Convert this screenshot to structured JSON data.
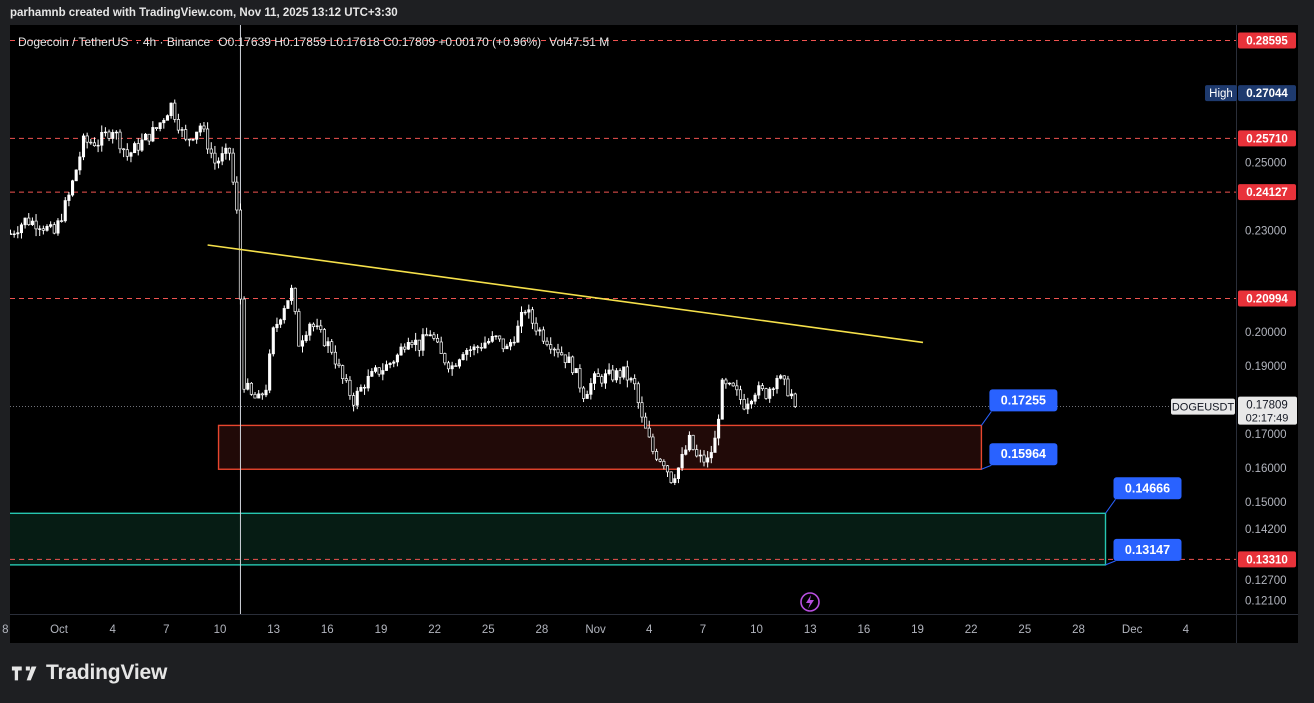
{
  "caption": "parhamnb created with TradingView.com, Nov 11, 2025 13:12 UTC+3:30",
  "brand": {
    "name": "TradingView"
  },
  "chart_data": {
    "type": "candlestick",
    "header": {
      "symbol": "Dogecoin / TetherUS",
      "interval": "4h",
      "exchange": "Binance",
      "ohlc": "O0.17639  H0.17859  L0.17618  C0.17809  +0.00170 (+0.96%)",
      "volume": "Vol47.51 M"
    },
    "colors": {
      "background": "#000000",
      "candle": "#ffffff",
      "trendline": "#f5e04a",
      "level_line": "#ef5350",
      "zone_red_border": "#e8462e",
      "zone_red_fill": "#210a08",
      "zone_green_border": "#26c6b0",
      "zone_green_fill": "#061c14",
      "blue_label": "#2962ff",
      "red_label": "#e8323a",
      "high_label": "#1e3a6e"
    },
    "y_axis": {
      "min": 0.117,
      "max": 0.2905,
      "ticks": [
        "0.25000",
        "0.23000",
        "0.20000",
        "0.19000",
        "0.17000",
        "0.16000",
        "0.15000",
        "0.14200",
        "0.12700",
        "0.12100"
      ]
    },
    "x_axis": {
      "ticks": [
        {
          "label": "8",
          "i": -1.4
        },
        {
          "label": "Oct",
          "i": 13.3
        },
        {
          "label": "4",
          "i": 28
        },
        {
          "label": "7",
          "i": 42.7
        },
        {
          "label": "10",
          "i": 57.4
        },
        {
          "label": "13",
          "i": 72.1
        },
        {
          "label": "16",
          "i": 86.8
        },
        {
          "label": "19",
          "i": 101.5
        },
        {
          "label": "22",
          "i": 116.2
        },
        {
          "label": "25",
          "i": 130.9
        },
        {
          "label": "28",
          "i": 145.6
        },
        {
          "label": "Nov",
          "i": 160.3
        },
        {
          "label": "4",
          "i": 175
        },
        {
          "label": "7",
          "i": 189.7
        },
        {
          "label": "10",
          "i": 204.4
        },
        {
          "label": "13",
          "i": 219.1
        },
        {
          "label": "16",
          "i": 233.8
        },
        {
          "label": "19",
          "i": 248.5
        },
        {
          "label": "22",
          "i": 263.2
        },
        {
          "label": "25",
          "i": 277.9
        },
        {
          "label": "28",
          "i": 292.6
        },
        {
          "label": "Dec",
          "i": 307.3
        },
        {
          "label": "4",
          "i": 322
        }
      ]
    },
    "levels": [
      {
        "label": "0.28595",
        "value": 0.28595
      },
      {
        "label": "0.25710",
        "value": 0.2571
      },
      {
        "label": "0.24127",
        "value": 0.24127
      },
      {
        "label": "0.20994",
        "value": 0.20994
      },
      {
        "label": "0.13310",
        "value": 0.1331
      }
    ],
    "high": {
      "tag": "High",
      "label": "0.27044",
      "value": 0.27044
    },
    "current": {
      "ticker": "DOGEUSDT",
      "label": "0.17809",
      "value": 0.17809,
      "countdown": "02:17:49"
    },
    "zones": [
      {
        "kind": "red",
        "top": 0.17255,
        "bottom": 0.15964,
        "i_start": 57,
        "i_end": 266
      },
      {
        "kind": "green",
        "top": 0.14666,
        "bottom": 0.13147,
        "i_start": -5,
        "i_end": 300
      }
    ],
    "zone_labels": [
      {
        "label": "0.17255",
        "value": 0.17255,
        "i": 266
      },
      {
        "label": "0.15964",
        "value": 0.15964,
        "i": 266
      },
      {
        "label": "0.14666",
        "value": 0.14666,
        "i": 300
      },
      {
        "label": "0.13147",
        "value": 0.13147,
        "i": 300
      }
    ],
    "trendline": {
      "i1": 54,
      "v1": 0.2257,
      "i2": 250,
      "v2": 0.197
    },
    "vline_index": 63,
    "path": [
      [
        0,
        0.229
      ],
      [
        4,
        0.233
      ],
      [
        8,
        0.232
      ],
      [
        12,
        0.229
      ],
      [
        16,
        0.24
      ],
      [
        20,
        0.256
      ],
      [
        24,
        0.256
      ],
      [
        28,
        0.26
      ],
      [
        32,
        0.252
      ],
      [
        36,
        0.256
      ],
      [
        40,
        0.26
      ],
      [
        44,
        0.267
      ],
      [
        48,
        0.256
      ],
      [
        52,
        0.261
      ],
      [
        56,
        0.25
      ],
      [
        60,
        0.253
      ],
      [
        62,
        0.235
      ],
      [
        64,
        0.185
      ],
      [
        66,
        0.181
      ],
      [
        68,
        0.18
      ],
      [
        70,
        0.184
      ],
      [
        72,
        0.2
      ],
      [
        75,
        0.208
      ],
      [
        77,
        0.212
      ],
      [
        79,
        0.197
      ],
      [
        82,
        0.203
      ],
      [
        85,
        0.199
      ],
      [
        88,
        0.195
      ],
      [
        91,
        0.186
      ],
      [
        94,
        0.18
      ],
      [
        97,
        0.185
      ],
      [
        100,
        0.188
      ],
      [
        103,
        0.19
      ],
      [
        106,
        0.193
      ],
      [
        109,
        0.199
      ],
      [
        112,
        0.196
      ],
      [
        115,
        0.2
      ],
      [
        118,
        0.193
      ],
      [
        121,
        0.19
      ],
      [
        124,
        0.195
      ],
      [
        127,
        0.195
      ],
      [
        130,
        0.197
      ],
      [
        133,
        0.198
      ],
      [
        136,
        0.195
      ],
      [
        139,
        0.201
      ],
      [
        141,
        0.207
      ],
      [
        143,
        0.203
      ],
      [
        146,
        0.199
      ],
      [
        150,
        0.195
      ],
      [
        154,
        0.19
      ],
      [
        157,
        0.182
      ],
      [
        160,
        0.186
      ],
      [
        164,
        0.187
      ],
      [
        168,
        0.188
      ],
      [
        171,
        0.184
      ],
      [
        173,
        0.174
      ],
      [
        176,
        0.165
      ],
      [
        179,
        0.162
      ],
      [
        181,
        0.157
      ],
      [
        183,
        0.16
      ],
      [
        186,
        0.168
      ],
      [
        188,
        0.163
      ],
      [
        191,
        0.162
      ],
      [
        193,
        0.168
      ],
      [
        195,
        0.184
      ],
      [
        198,
        0.183
      ],
      [
        201,
        0.179
      ],
      [
        204,
        0.183
      ],
      [
        207,
        0.182
      ],
      [
        210,
        0.187
      ],
      [
        213,
        0.183
      ],
      [
        215,
        0.18
      ]
    ]
  }
}
